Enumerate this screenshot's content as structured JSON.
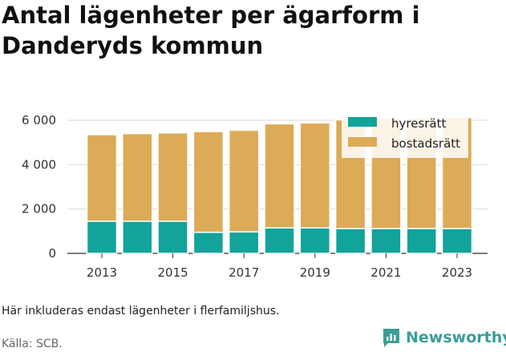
{
  "title": "Antal lägenheter per ägarform i Danderyds kommun",
  "note": "Här inkluderas endast lägenheter i flerfamiljshus.",
  "source": "Källa: SCB.",
  "brand": {
    "name": "Newsworthy",
    "icon": "newsworthy-logo-icon",
    "color": "#3a9d98"
  },
  "chart_data": {
    "type": "bar",
    "stacked": true,
    "categories": [
      "2013",
      "2014",
      "2015",
      "2016",
      "2017",
      "2018",
      "2019",
      "2020",
      "2021",
      "2022",
      "2023"
    ],
    "x_tick_labels": [
      "2013",
      "2015",
      "2017",
      "2019",
      "2021",
      "2023"
    ],
    "y_tick_values": [
      0,
      2000,
      4000,
      6000
    ],
    "y_tick_labels": [
      "0",
      "2 000",
      "4 000",
      "6 000"
    ],
    "ylim": [
      0,
      6000
    ],
    "grid": true,
    "legend_position": "top-right",
    "series": [
      {
        "name": "hyresrätt",
        "color": "#12a39a",
        "values": [
          1450,
          1450,
          1450,
          950,
          970,
          1150,
          1150,
          1120,
          1120,
          1120,
          1120
        ]
      },
      {
        "name": "bostadsrätt",
        "color": "#dbab57",
        "values": [
          3900,
          3950,
          3980,
          4540,
          4580,
          4690,
          4730,
          4900,
          4950,
          4980,
          5000
        ]
      }
    ]
  }
}
